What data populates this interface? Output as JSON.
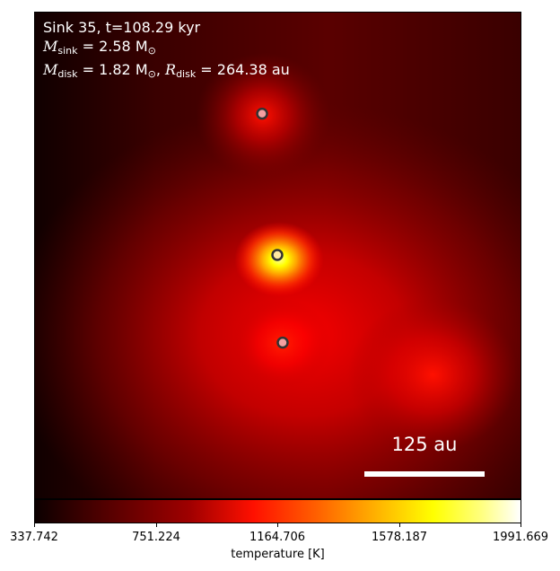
{
  "info": {
    "line1": "Sink 35, t=108.29 kyr",
    "msink_symbol": "M",
    "msink_sub": "sink",
    "msink_value": " = 2.58 M",
    "msink_unit_sub": "⊙",
    "mdisk_symbol": "M",
    "mdisk_sub": "disk",
    "mdisk_value": " = 1.82 M",
    "mdisk_unit_sub": "⊙",
    "sep": ", ",
    "rdisk_symbol": "R",
    "rdisk_sub": "disk",
    "rdisk_value": " = 264.38 au"
  },
  "scale_bar": {
    "label": "125 au"
  },
  "colorbar": {
    "label": "temperature [K]",
    "ticks": [
      "337.742",
      "751.224",
      "1164.706",
      "1578.187",
      "1991.669"
    ],
    "colors": [
      "#000000",
      "#8b0000",
      "#ff0000",
      "#ffa500",
      "#ffff00",
      "#ffffff"
    ]
  },
  "sinks": [
    {
      "name": "sink-top",
      "fill": "#f4a0a0"
    },
    {
      "name": "sink-center",
      "fill": "#ffe8a0"
    },
    {
      "name": "sink-bottom",
      "fill": "#f4a0a0"
    }
  ]
}
